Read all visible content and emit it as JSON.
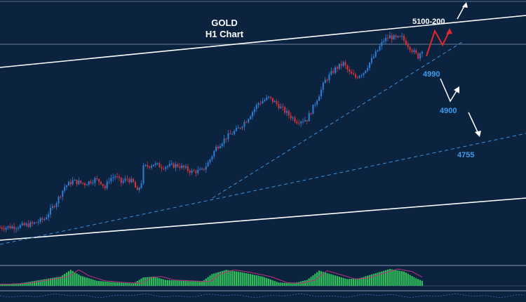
{
  "chart_data": {
    "type": "candlestick",
    "title": "GOLD",
    "subtitle": "H1 Chart",
    "colors": {
      "background": "#0c2340",
      "bull_candle": "#2f7fd6",
      "bear_candle": "#d9343a",
      "channel_line": "#ffffff",
      "trend_line": "#3d8fd8",
      "target_label": "#3d9df0",
      "forecast_up_arrow": "#e0282e",
      "forecast_arrow": "#ffffff",
      "histogram": "#2fbf5a",
      "signal_line": "#c0307a"
    },
    "price_path": [
      [
        0,
        4560
      ],
      [
        8,
        4562
      ],
      [
        16,
        4568
      ],
      [
        22,
        4580
      ],
      [
        28,
        4620
      ],
      [
        32,
        4655
      ],
      [
        36,
        4668
      ],
      [
        42,
        4662
      ],
      [
        47,
        4672
      ],
      [
        50,
        4666
      ],
      [
        52,
        4652
      ],
      [
        54,
        4672
      ],
      [
        57,
        4680
      ],
      [
        60,
        4665
      ],
      [
        63,
        4674
      ],
      [
        66,
        4664
      ],
      [
        68,
        4642
      ],
      [
        70,
        4666
      ],
      [
        71,
        4700
      ],
      [
        76,
        4708
      ],
      [
        80,
        4702
      ],
      [
        88,
        4705
      ],
      [
        95,
        4690
      ],
      [
        100,
        4692
      ],
      [
        103,
        4710
      ],
      [
        107,
        4746
      ],
      [
        112,
        4770
      ],
      [
        118,
        4790
      ],
      [
        122,
        4810
      ],
      [
        128,
        4850
      ],
      [
        133,
        4862
      ],
      [
        137,
        4848
      ],
      [
        140,
        4835
      ],
      [
        143,
        4822
      ],
      [
        147,
        4808
      ],
      [
        152,
        4812
      ],
      [
        155,
        4840
      ],
      [
        158,
        4870
      ],
      [
        161,
        4902
      ],
      [
        166,
        4930
      ],
      [
        170,
        4942
      ],
      [
        173,
        4920
      ],
      [
        176,
        4910
      ],
      [
        180,
        4922
      ],
      [
        185,
        4958
      ],
      [
        190,
        4996
      ],
      [
        193,
        5005
      ],
      [
        196,
        5000
      ],
      [
        199,
        5002
      ],
      [
        202,
        4985
      ],
      [
        205,
        4968
      ],
      [
        207,
        4958
      ],
      [
        209,
        4975
      ]
    ],
    "forecast_path": [
      [
        209,
        4975
      ],
      [
        214,
        4950
      ],
      [
        218,
        4985
      ],
      [
        222,
        4960
      ],
      [
        230,
        5005
      ]
    ],
    "indicator_histogram": [
      [
        0,
        0.1
      ],
      [
        10,
        0.15
      ],
      [
        20,
        0.35
      ],
      [
        30,
        0.55
      ],
      [
        35,
        0.95
      ],
      [
        40,
        0.6
      ],
      [
        48,
        0.3
      ],
      [
        58,
        0.2
      ],
      [
        66,
        0.15
      ],
      [
        71,
        0.5
      ],
      [
        76,
        0.55
      ],
      [
        82,
        0.35
      ],
      [
        90,
        0.3
      ],
      [
        100,
        0.25
      ],
      [
        105,
        0.7
      ],
      [
        112,
        0.95
      ],
      [
        120,
        0.8
      ],
      [
        130,
        0.55
      ],
      [
        138,
        0.2
      ],
      [
        145,
        0.15
      ],
      [
        152,
        0.35
      ],
      [
        158,
        0.9
      ],
      [
        165,
        0.65
      ],
      [
        172,
        0.4
      ],
      [
        178,
        0.45
      ],
      [
        186,
        0.75
      ],
      [
        193,
        1.0
      ],
      [
        200,
        0.85
      ],
      [
        206,
        0.45
      ],
      [
        209,
        0.3
      ]
    ],
    "annotations": {
      "target_top": "5100-200",
      "level_1": "4990",
      "level_2": "4900",
      "level_3": "4755"
    }
  }
}
